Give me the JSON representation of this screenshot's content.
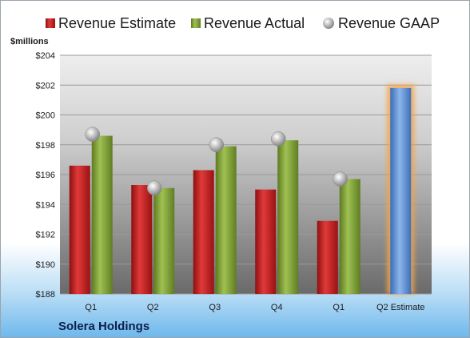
{
  "company": "Solera Holdings",
  "chart_data": {
    "type": "bar",
    "unit_label": "$millions",
    "categories": [
      "Q1",
      "Q2",
      "Q3",
      "Q4",
      "Q1",
      "Q2 Estimate"
    ],
    "ylim": [
      188,
      204
    ],
    "yticks": [
      188,
      190,
      192,
      194,
      196,
      198,
      200,
      202,
      204
    ],
    "ytick_labels": [
      "$188",
      "$190",
      "$192",
      "$194",
      "$196",
      "$198",
      "$200",
      "$202",
      "$204"
    ],
    "grid": true,
    "legend_position": "top",
    "series": [
      {
        "name": "Revenue Estimate",
        "kind": "bar",
        "color": "#cc1f1f",
        "values": [
          196.6,
          195.3,
          196.3,
          195.0,
          192.9,
          null
        ]
      },
      {
        "name": "Revenue Actual",
        "kind": "bar",
        "color": "#86a83a",
        "values": [
          198.6,
          195.1,
          197.9,
          198.3,
          195.7,
          null
        ]
      },
      {
        "name": "Revenue GAAP",
        "kind": "marker",
        "color": "#a9a9a9",
        "values": [
          198.7,
          195.1,
          198.0,
          198.4,
          195.7,
          null
        ]
      }
    ],
    "projection": {
      "category": "Q2 Estimate",
      "value": 201.8,
      "color": "#5b8fd6",
      "glow": "#f4a44a"
    }
  }
}
